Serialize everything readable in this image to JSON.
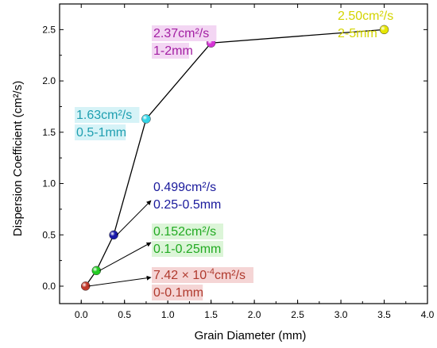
{
  "chart_data": {
    "type": "scatter",
    "xlabel": "Grain Diameter  (mm)",
    "ylabel": "Dispersion Coefficient  (cm²/s)",
    "xlim": [
      -0.25,
      4.0
    ],
    "ylim": [
      -0.17,
      2.75
    ],
    "xticks": [
      "0.0",
      "0.5",
      "1.0",
      "1.5",
      "2.0",
      "2.5",
      "3.0",
      "3.5",
      "4.0"
    ],
    "yticks": [
      "0.0",
      "0.5",
      "1.0",
      "1.5",
      "2.0",
      "2.5"
    ],
    "grid": false,
    "connect": "points 1-5 joined by a black line",
    "points": [
      {
        "x": 0.05,
        "y": 0.000742,
        "color": "#c0392b",
        "label_value": "7.42 × 10",
        "label_exp": "-4",
        "label_unit": "cm²/s",
        "label_range": "0-0.1mm",
        "label_color": "#b03a2e",
        "label_bg": "#f5d5d5"
      },
      {
        "x": 0.175,
        "y": 0.152,
        "color": "#22cc22",
        "label_value": "0.152cm²/s",
        "label_range": "0.1-0.25mm",
        "label_color": "#22aa22",
        "label_bg": "#dcf5d8"
      },
      {
        "x": 0.375,
        "y": 0.499,
        "color": "#1a1aa8",
        "label_value": "0.499cm²/s",
        "label_range": "0.25-0.5mm",
        "label_color": "#1a1a9c",
        "label_bg": "#ffffff"
      },
      {
        "x": 0.75,
        "y": 1.63,
        "color": "#33d4e6",
        "label_value": "1.63cm²/s",
        "label_range": "0.5-1mm",
        "label_color": "#1f9fb0",
        "label_bg": "#d6f3f7"
      },
      {
        "x": 1.5,
        "y": 2.37,
        "color": "#d633d6",
        "label_value": "2.37cm²/s",
        "label_range": "1-2mm",
        "label_color": "#a31fa3",
        "label_bg": "#f3d6f3"
      },
      {
        "x": 3.5,
        "y": 2.5,
        "color": "#e6e600",
        "label_value": "2.50cm²/s",
        "label_range": "2-5mm",
        "label_color": "#d4d400",
        "label_bg": "#ffffff"
      }
    ]
  }
}
